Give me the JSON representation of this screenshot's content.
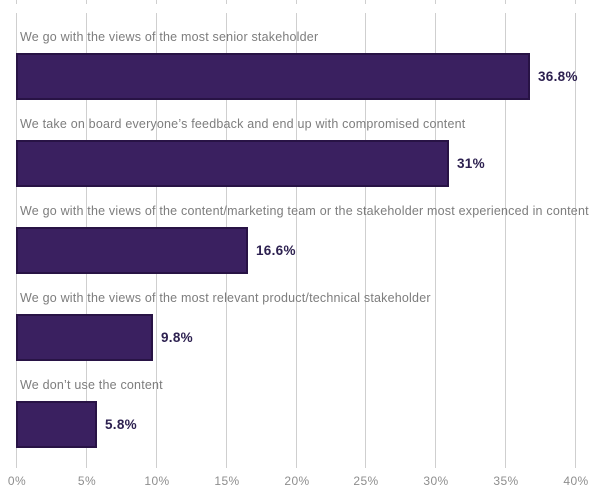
{
  "chart_data": {
    "type": "bar",
    "orientation": "horizontal",
    "title": "",
    "xlabel": "",
    "ylabel": "",
    "categories": [
      "We go with the views of the most senior stakeholder",
      "We take on board everyone’s feedback and end up with compromised content",
      "We go with the views of the content/marketing team or the stakeholder most experienced in content",
      "We go with the views of the most relevant product/technical stakeholder",
      "We don’t use the content"
    ],
    "values": [
      36.8,
      31,
      16.6,
      9.8,
      5.8
    ],
    "value_labels": [
      "36.8%",
      "31%",
      "16.6%",
      "9.8%",
      "5.8%"
    ],
    "xlim": [
      0,
      40
    ],
    "x_ticks": [
      0,
      5,
      10,
      15,
      20,
      25,
      30,
      35,
      40
    ],
    "x_tick_labels": [
      "0%",
      "5%",
      "10%",
      "15%",
      "20%",
      "25%",
      "30%",
      "35%",
      "40%"
    ],
    "grid": true,
    "legend": false,
    "colors": {
      "bar_fill": "#3a2060",
      "bar_border": "#281345",
      "value_text": "#2d2150",
      "category_text": "#7d7d7d",
      "tick_text": "#8e8e8e",
      "gridline": "#cfcfcf",
      "background": "#ffffff"
    }
  }
}
